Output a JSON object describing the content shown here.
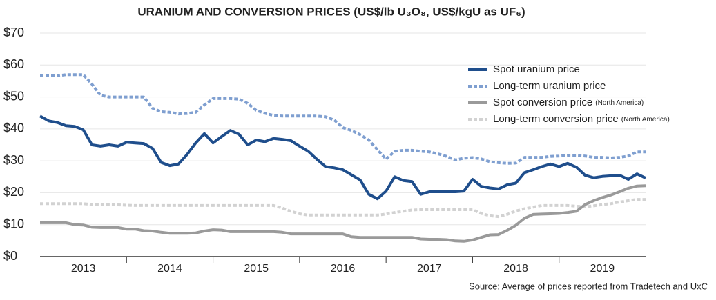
{
  "chart_data": {
    "type": "line",
    "title": "URANIUM AND CONVERSION PRICES (US$/lb U₃O₈, US$/kgU as UF₆)",
    "source": "Source: Average of prices reported from Tradetech and UxC",
    "x": [
      2013.0,
      2013.1,
      2013.2,
      2013.3,
      2013.4,
      2013.5,
      2013.6,
      2013.7,
      2013.8,
      2013.9,
      2014.0,
      2014.1,
      2014.2,
      2014.3,
      2014.4,
      2014.5,
      2014.6,
      2014.7,
      2014.8,
      2014.9,
      2015.0,
      2015.1,
      2015.2,
      2015.3,
      2015.4,
      2015.5,
      2015.6,
      2015.7,
      2015.8,
      2015.9,
      2016.0,
      2016.1,
      2016.2,
      2016.3,
      2016.4,
      2016.5,
      2016.6,
      2016.7,
      2016.8,
      2016.9,
      2017.0,
      2017.1,
      2017.2,
      2017.3,
      2017.4,
      2017.5,
      2017.6,
      2017.7,
      2017.8,
      2017.9,
      2018.0,
      2018.1,
      2018.2,
      2018.3,
      2018.4,
      2018.5,
      2018.6,
      2018.7,
      2018.8,
      2018.9,
      2019.0,
      2019.1,
      2019.2,
      2019.3,
      2019.4,
      2019.5,
      2019.6,
      2019.7,
      2019.8,
      2019.9,
      2020.0
    ],
    "xlim": [
      2013,
      2020
    ],
    "xticks": [
      2014,
      2015,
      2016,
      2017,
      2018,
      2019
    ],
    "xtick_labels": [
      {
        "value": 2013.5,
        "label": "2013"
      },
      {
        "value": 2014.5,
        "label": "2014"
      },
      {
        "value": 2015.5,
        "label": "2015"
      },
      {
        "value": 2016.5,
        "label": "2016"
      },
      {
        "value": 2017.5,
        "label": "2017"
      },
      {
        "value": 2018.5,
        "label": "2018"
      },
      {
        "value": 2019.5,
        "label": "2019"
      }
    ],
    "ylim": [
      0,
      70
    ],
    "yticks": [
      {
        "value": 0,
        "label": "$0"
      },
      {
        "value": 10,
        "label": "$10"
      },
      {
        "value": 20,
        "label": "$20"
      },
      {
        "value": 30,
        "label": "$30"
      },
      {
        "value": 40,
        "label": "$40"
      },
      {
        "value": 50,
        "label": "$50"
      },
      {
        "value": 60,
        "label": "$60"
      },
      {
        "value": 70,
        "label": "$70"
      }
    ],
    "grid": true,
    "legend": "upper right",
    "series": [
      {
        "name": "Spot uranium price",
        "color": "#1f4e8c",
        "dashed": false,
        "values": [
          44.0,
          42.5,
          42,
          41,
          40.8,
          39.7,
          35,
          34.6,
          35,
          34.6,
          35.8,
          35.6,
          35.4,
          33.9,
          29.5,
          28.5,
          29,
          32,
          35.6,
          38.5,
          35.6,
          37.6,
          39.5,
          38.3,
          35,
          36.5,
          36,
          37,
          36.7,
          36.3,
          34.6,
          33,
          30.5,
          28.2,
          27.8,
          27.2,
          25.6,
          24,
          19.5,
          18.1,
          20.5,
          25,
          23.8,
          23.5,
          19.5,
          20.3,
          20.3,
          20.3,
          20.3,
          20.5,
          24.2,
          22,
          21.5,
          21.2,
          22.5,
          23,
          26.3,
          27.2,
          28.2,
          29,
          28.2,
          29.2,
          28,
          25.5,
          24.7,
          25.1,
          25.3,
          25.5,
          24.2,
          25.9,
          24.6
        ]
      },
      {
        "name": "Long-term uranium price",
        "color": "#7f9fd0",
        "dashed": true,
        "values": [
          56.6,
          56.6,
          56.6,
          57,
          57,
          57,
          54,
          50.5,
          50,
          50,
          50,
          50,
          50,
          46.5,
          45.4,
          45.2,
          44.7,
          44.8,
          45.2,
          47.5,
          49.5,
          49.5,
          49.5,
          49.3,
          48,
          45.8,
          44.9,
          44.2,
          44,
          44,
          44,
          44,
          44,
          43.8,
          42.8,
          40.4,
          39.5,
          38.2,
          36.5,
          33.5,
          30.5,
          33,
          33.3,
          33.3,
          33,
          32.8,
          32.2,
          31.4,
          30.3,
          30.8,
          31,
          30.6,
          29.7,
          29.4,
          29.2,
          29.3,
          31.1,
          31.1,
          31.1,
          31.4,
          31.5,
          31.7,
          31.7,
          31.5,
          31.1,
          31.1,
          30.9,
          31.1,
          31.5,
          32.8,
          32.8
        ]
      },
      {
        "name": "Spot conversion price",
        "note": "(North America)",
        "color": "#9a9a9a",
        "dashed": false,
        "values": [
          10.6,
          10.6,
          10.6,
          10.6,
          10,
          9.9,
          9.2,
          9.1,
          9.1,
          9.1,
          8.6,
          8.6,
          8.1,
          8,
          7.6,
          7.3,
          7.3,
          7.3,
          7.4,
          8,
          8.4,
          8.3,
          7.8,
          7.8,
          7.8,
          7.8,
          7.8,
          7.8,
          7.6,
          7.1,
          7.1,
          7.1,
          7.1,
          7.1,
          7.1,
          7.1,
          6.2,
          6,
          6,
          6,
          6,
          6,
          6,
          6,
          5.5,
          5.4,
          5.4,
          5.3,
          4.9,
          4.8,
          5.2,
          6,
          6.8,
          6.9,
          8.2,
          9.8,
          12,
          13.2,
          13.3,
          13.4,
          13.5,
          13.8,
          14.2,
          16.3,
          17.5,
          18.5,
          19.3,
          20.3,
          21.4,
          22.1,
          22.2
        ]
      },
      {
        "name": "Long-term conversion price",
        "note": "(North America)",
        "color": "#d2d2d2",
        "dashed": true,
        "values": [
          16.6,
          16.6,
          16.6,
          16.6,
          16.6,
          16.6,
          16.3,
          16.2,
          16.2,
          16.2,
          16.1,
          16,
          16,
          16,
          16,
          16,
          16,
          16,
          16,
          16,
          16,
          16,
          16,
          16,
          16,
          16,
          16,
          16,
          15.2,
          14.2,
          13.4,
          13,
          13,
          13,
          13,
          13,
          13,
          13,
          13,
          13,
          13.3,
          13.8,
          14.2,
          14.6,
          14.7,
          14.7,
          14.7,
          14.7,
          14.7,
          14.7,
          14.7,
          13.5,
          12.8,
          12.5,
          13.2,
          14.3,
          15,
          15.5,
          16,
          16,
          16,
          16,
          15.8,
          15.6,
          15.9,
          16.3,
          16.6,
          17.1,
          17.5,
          17.9,
          17.9
        ]
      }
    ]
  }
}
